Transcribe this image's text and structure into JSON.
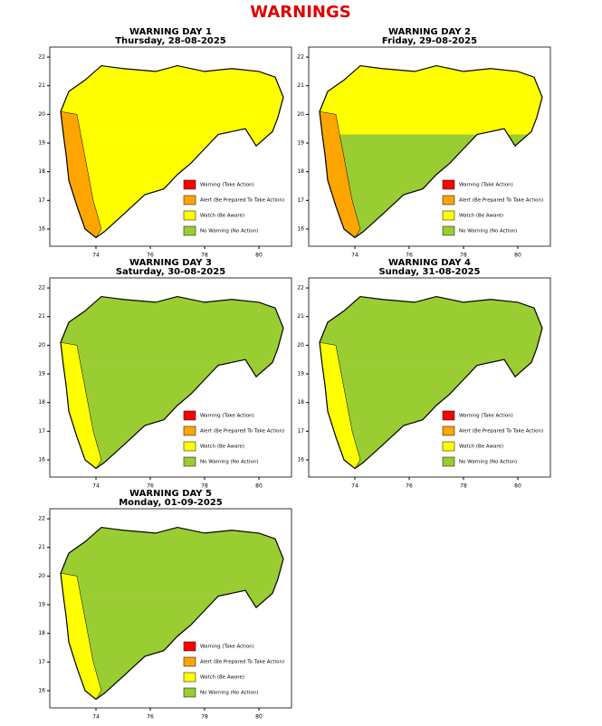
{
  "title": "WARNINGS",
  "xlim": [
    72.3,
    81.2
  ],
  "ylim": [
    15.4,
    22.35
  ],
  "xticks": [
    74,
    76,
    78,
    80
  ],
  "yticks": [
    16,
    17,
    18,
    19,
    20,
    21,
    22
  ],
  "legend": [
    {
      "name": "Warning (Take Action)",
      "color": "#ff0000"
    },
    {
      "name": "Alert (Be Prepared To Take Action)",
      "color": "#ffa500"
    },
    {
      "name": "Watch (Be Aware)",
      "color": "#ffff00"
    },
    {
      "name": "No Warning (No Action)",
      "color": "#9acd32"
    }
  ],
  "panels": [
    {
      "title": "WARNING DAY 1",
      "subtitle": "Thursday, 28-08-2025",
      "region_colors": {
        "north": "#ffff00",
        "south": "#ffff00",
        "coast": "#ffa500"
      }
    },
    {
      "title": "WARNING DAY 2",
      "subtitle": "Friday, 29-08-2025",
      "region_colors": {
        "north": "#ffff00",
        "south": "#9acd32",
        "coast": "#ffa500"
      }
    },
    {
      "title": "WARNING DAY 3",
      "subtitle": "Saturday, 30-08-2025",
      "region_colors": {
        "north": "#9acd32",
        "south": "#9acd32",
        "coast": "#ffff00"
      }
    },
    {
      "title": "WARNING DAY 4",
      "subtitle": "Sunday, 31-08-2025",
      "region_colors": {
        "north": "#9acd32",
        "south": "#9acd32",
        "coast": "#ffff00"
      }
    },
    {
      "title": "WARNING DAY 5",
      "subtitle": "Monday, 01-09-2025",
      "region_colors": {
        "north": "#9acd32",
        "south": "#9acd32",
        "coast": "#ffff00"
      }
    }
  ]
}
